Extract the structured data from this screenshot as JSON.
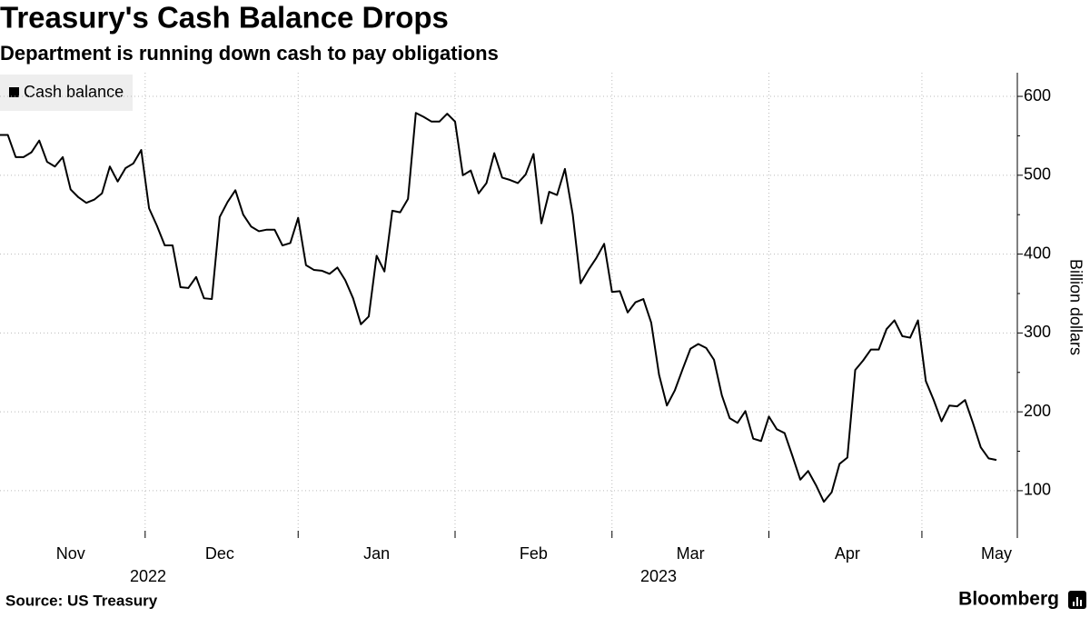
{
  "chart_data": {
    "type": "line",
    "title": "Treasury's Cash Balance Drops",
    "subtitle": "Department is running down cash to pay obligations",
    "y_axis_label": "Billion dollars",
    "source": "Source: US Treasury",
    "brand": "Bloomberg",
    "x_years": [
      "2022",
      "2023"
    ],
    "categories": [
      null,
      null,
      null,
      null,
      null,
      null,
      null,
      null,
      null,
      "Nov",
      null,
      null,
      null,
      null,
      null,
      null,
      null,
      null,
      null,
      null,
      null,
      null,
      null,
      null,
      null,
      null,
      null,
      null,
      "Dec",
      null,
      null,
      null,
      null,
      null,
      null,
      null,
      null,
      null,
      null,
      null,
      null,
      null,
      null,
      null,
      null,
      null,
      null,
      null,
      "Jan",
      null,
      null,
      null,
      null,
      null,
      null,
      null,
      null,
      null,
      null,
      null,
      null,
      null,
      null,
      null,
      null,
      null,
      null,
      null,
      "Feb",
      null,
      null,
      null,
      null,
      null,
      null,
      null,
      null,
      null,
      null,
      null,
      null,
      null,
      null,
      null,
      null,
      null,
      null,
      null,
      "Mar",
      null,
      null,
      null,
      null,
      null,
      null,
      null,
      null,
      null,
      null,
      null,
      null,
      null,
      null,
      null,
      null,
      null,
      null,
      null,
      "Apr",
      null,
      null,
      null,
      null,
      null,
      null,
      null,
      null,
      null,
      null,
      null,
      null,
      null,
      null,
      null,
      null,
      null,
      null,
      "May"
    ],
    "series": [
      {
        "name": "Cash balance",
        "color": "#000000",
        "values": [
          551,
          551,
          523,
          523,
          529,
          544,
          517,
          511,
          523,
          482,
          472,
          465,
          469,
          477,
          511,
          492,
          509,
          515,
          532,
          458,
          436,
          411,
          411,
          358,
          357,
          371,
          344,
          343,
          447,
          466,
          481,
          450,
          435,
          429,
          431,
          431,
          411,
          414,
          446,
          386,
          380,
          379,
          375,
          383,
          367,
          344,
          311,
          321,
          398,
          378,
          455,
          453,
          470,
          579,
          574,
          568,
          568,
          578,
          568,
          500,
          506,
          477,
          490,
          528,
          497,
          494,
          490,
          501,
          527,
          439,
          479,
          475,
          508,
          450,
          363,
          380,
          395,
          413,
          352,
          353,
          326,
          339,
          343,
          313,
          247,
          208,
          227,
          254,
          280,
          286,
          281,
          266,
          221,
          192,
          186,
          201,
          166,
          163,
          194,
          178,
          173,
          144,
          114,
          125,
          107,
          86,
          98,
          134,
          142,
          253,
          265,
          279,
          279,
          305,
          316,
          296,
          294,
          316,
          239,
          215,
          188,
          208,
          207,
          215,
          186,
          155,
          141,
          139
        ]
      }
    ],
    "ylim": [
      40,
      630
    ],
    "yticks": [
      100,
      200,
      300,
      400,
      500,
      600
    ],
    "grid": true,
    "legend": "top-left"
  }
}
